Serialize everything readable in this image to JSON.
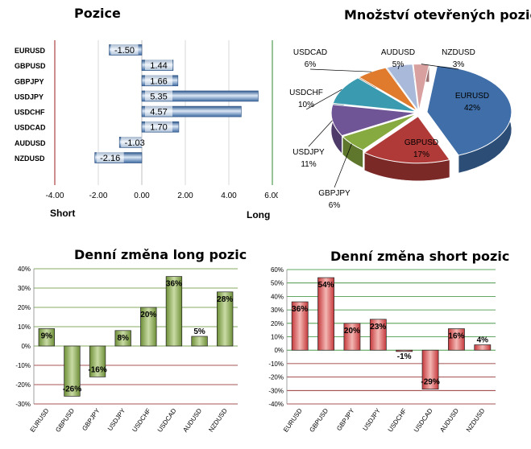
{
  "chart_data": [
    {
      "type": "bar",
      "orientation": "horizontal",
      "title": "Pozice",
      "categories": [
        "EURUSD",
        "GBPUSD",
        "GBPJPY",
        "USDJPY",
        "USDCHF",
        "USDCAD",
        "AUDUSD",
        "NZDUSD"
      ],
      "values": [
        -1.5,
        1.44,
        1.66,
        5.35,
        4.57,
        1.7,
        -1.03,
        -2.16
      ],
      "value_labels": [
        "-1.50",
        "1.44",
        "1.66",
        "5.35",
        "4.57",
        "1.70",
        "-1.03",
        "-2.16"
      ],
      "xlim": [
        -4,
        6
      ],
      "xticks": [
        "-4.00",
        "-2.00",
        "0.00",
        "2.00",
        "4.00",
        "6.00"
      ],
      "left_label": "Short",
      "right_label": "Long",
      "bar_color": "#5b86c0"
    },
    {
      "type": "pie",
      "title": "Množství otevřených pozic",
      "slices": [
        {
          "label": "EURUSD",
          "value": 42,
          "text": "42%",
          "color": "#3f6ea8"
        },
        {
          "label": "GBPUSD",
          "value": 17,
          "text": "17%",
          "color": "#b03a38"
        },
        {
          "label": "GBPJPY",
          "value": 6,
          "text": "6%",
          "color": "#86aa3f"
        },
        {
          "label": "USDJPY",
          "value": 11,
          "text": "11%",
          "color": "#6f5496"
        },
        {
          "label": "USDCHF",
          "value": 10,
          "text": "10%",
          "color": "#3a9bb0"
        },
        {
          "label": "USDCAD",
          "value": 6,
          "text": "6%",
          "color": "#e07b2e"
        },
        {
          "label": "AUDUSD",
          "value": 5,
          "text": "5%",
          "color": "#a8b9d9"
        },
        {
          "label": "NZDUSD",
          "value": 3,
          "text": "3%",
          "color": "#d9a0a0"
        }
      ]
    },
    {
      "type": "bar",
      "title": "Denní změna long pozic",
      "categories": [
        "EURUSD",
        "GBPUSD",
        "GBPJPY",
        "USDJPY",
        "USDCHF",
        "USDCAD",
        "AUDUSD",
        "NZDUSD"
      ],
      "values": [
        9,
        -26,
        -16,
        8,
        20,
        36,
        5,
        28
      ],
      "value_labels": [
        "9%",
        "-26%",
        "-16%",
        "8%",
        "20%",
        "36%",
        "5%",
        "28%"
      ],
      "ylim": [
        -30,
        40
      ],
      "yticks": [
        "-30%",
        "-20%",
        "-10%",
        "0%",
        "10%",
        "20%",
        "30%",
        "40%"
      ],
      "bar_color": "#6d8f37",
      "grid_color": "#5f8f2e"
    },
    {
      "type": "bar",
      "title": "Denní změna short pozic",
      "categories": [
        "EURUSD",
        "GBPUSD",
        "GBPJPY",
        "USDJPY",
        "USDCHF",
        "USDCAD",
        "AUDUSD",
        "NZDUSD"
      ],
      "values": [
        36,
        54,
        20,
        23,
        -1,
        -29,
        16,
        4
      ],
      "value_labels": [
        "36%",
        "54%",
        "20%",
        "23%",
        "-1%",
        "-29%",
        "16%",
        "4%"
      ],
      "ylim": [
        -40,
        60
      ],
      "yticks": [
        "-40%",
        "-30%",
        "-20%",
        "-10%",
        "0%",
        "10%",
        "20%",
        "30%",
        "40%",
        "50%",
        "60%"
      ],
      "bar_color": "#c6393c",
      "grid_color": "#2e8a2e"
    }
  ]
}
